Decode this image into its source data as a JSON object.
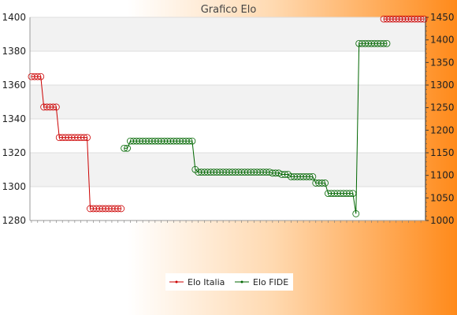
{
  "chart_data": {
    "type": "line",
    "title": "Grafico Elo",
    "grid": true,
    "legend_placement": "bottom-center",
    "y_left": {
      "ylim": [
        1280,
        1400
      ],
      "ticks": [
        1280,
        1300,
        1320,
        1340,
        1360,
        1380,
        1400
      ]
    },
    "y_right": {
      "ylim": [
        1000,
        1450
      ],
      "ticks": [
        1000,
        1050,
        1100,
        1150,
        1200,
        1250,
        1300,
        1350,
        1400,
        1450
      ]
    },
    "n_points": 128,
    "series": [
      {
        "name": "Elo Italia",
        "color": "#cc0000",
        "axis": "left",
        "segments": [
          {
            "start": 0,
            "end": 3,
            "value": 1365
          },
          {
            "start": 4,
            "end": 8,
            "value": 1347
          },
          {
            "start": 9,
            "end": 18,
            "value": 1329
          },
          {
            "start": 19,
            "end": 29,
            "value": 1287
          },
          {
            "start": 114,
            "end": 127,
            "value": 1399
          }
        ]
      },
      {
        "name": "Elo FIDE",
        "color": "#006600",
        "axis": "right",
        "segments": [
          {
            "start": 30,
            "end": 31,
            "value": 1160
          },
          {
            "start": 32,
            "end": 52,
            "value": 1176
          },
          {
            "start": 53,
            "end": 53,
            "value": 1113
          },
          {
            "start": 54,
            "end": 77,
            "value": 1107
          },
          {
            "start": 78,
            "end": 80,
            "value": 1105
          },
          {
            "start": 81,
            "end": 83,
            "value": 1102
          },
          {
            "start": 84,
            "end": 91,
            "value": 1097
          },
          {
            "start": 92,
            "end": 95,
            "value": 1083
          },
          {
            "start": 96,
            "end": 104,
            "value": 1060
          },
          {
            "start": 105,
            "end": 105,
            "value": 1015
          },
          {
            "start": 106,
            "end": 115,
            "value": 1392
          }
        ]
      }
    ]
  }
}
